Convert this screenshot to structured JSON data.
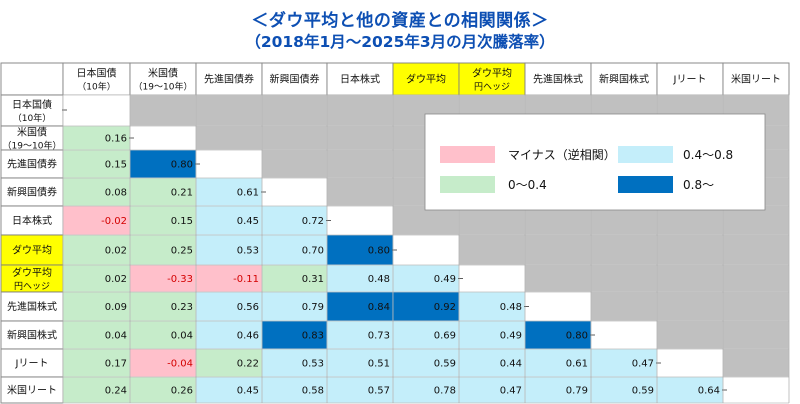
{
  "title": "＜ダウ平均と他の資産との相関関係＞",
  "subtitle": "（2018年1月〜2025年3月の月次騰落率）",
  "chart_data": {
    "type": "heatmap",
    "assets": [
      {
        "lines": [
          "日本国債",
          "（10年）"
        ],
        "highlight": false
      },
      {
        "lines": [
          "米国債",
          "（19〜10年）"
        ],
        "highlight": false
      },
      {
        "lines": [
          "先進国債券"
        ],
        "highlight": false
      },
      {
        "lines": [
          "新興国債券"
        ],
        "highlight": false
      },
      {
        "lines": [
          "日本株式"
        ],
        "highlight": false
      },
      {
        "lines": [
          "ダウ平均"
        ],
        "highlight": true
      },
      {
        "lines": [
          "ダウ平均",
          "円ヘッジ"
        ],
        "highlight": true
      },
      {
        "lines": [
          "先進国株式"
        ],
        "highlight": false
      },
      {
        "lines": [
          "新興国株式"
        ],
        "highlight": false
      },
      {
        "lines": [
          "Jリート"
        ],
        "highlight": false
      },
      {
        "lines": [
          "米国リート"
        ],
        "highlight": false
      }
    ],
    "row_labels": [
      {
        "lines": [
          "日本国債",
          "（10年）"
        ],
        "highlight": false
      },
      {
        "lines": [
          "米国債",
          "（19〜10年）"
        ],
        "highlight": false
      },
      {
        "lines": [
          "先進国債券"
        ],
        "highlight": false
      },
      {
        "lines": [
          "新興国債券"
        ],
        "highlight": false
      },
      {
        "lines": [
          "日本株式"
        ],
        "highlight": false
      },
      {
        "lines": [
          "ダウ平均"
        ],
        "highlight": true
      },
      {
        "lines": [
          "ダウ平均",
          "円ヘッジ"
        ],
        "highlight": true
      },
      {
        "lines": [
          "先進国株式"
        ],
        "highlight": false
      },
      {
        "lines": [
          "新興国株式"
        ],
        "highlight": false
      },
      {
        "lines": [
          "Jリート"
        ],
        "highlight": false
      },
      {
        "lines": [
          "米国リート"
        ],
        "highlight": false
      }
    ],
    "values": [
      [],
      [
        "0.16"
      ],
      [
        "0.15",
        "0.80"
      ],
      [
        "0.08",
        "0.21",
        "0.61"
      ],
      [
        "-0.02",
        "0.15",
        "0.45",
        "0.72"
      ],
      [
        "0.02",
        "0.25",
        "0.53",
        "0.70",
        "0.80"
      ],
      [
        "0.02",
        "-0.33",
        "-0.11",
        "0.31",
        "0.48",
        "0.49"
      ],
      [
        "0.09",
        "0.23",
        "0.56",
        "0.79",
        "0.84",
        "0.92",
        "0.48"
      ],
      [
        "0.04",
        "0.04",
        "0.46",
        "0.83",
        "0.73",
        "0.69",
        "0.49",
        "0.80"
      ],
      [
        "0.17",
        "-0.04",
        "0.22",
        "0.53",
        "0.51",
        "0.59",
        "0.44",
        "0.61",
        "0.47"
      ],
      [
        "0.24",
        "0.26",
        "0.45",
        "0.58",
        "0.57",
        "0.78",
        "0.47",
        "0.79",
        "0.59",
        "0.64"
      ]
    ],
    "legend": [
      {
        "label": "マイナス（逆相関）",
        "color": "#ffc0cb"
      },
      {
        "label": "0.4〜0.8",
        "color": "#c4eefa"
      },
      {
        "label": "0〜0.4",
        "color": "#c6ecca"
      },
      {
        "label": "0.8〜",
        "color": "#0070c0"
      }
    ],
    "colors": {
      "negative": "#ffc0cb",
      "low": "#c6ecca",
      "mid": "#c4eefa",
      "high": "#0070c0",
      "masked": "#c0c0c0",
      "highlight": "#ffff00",
      "title": "#0d4fb3"
    }
  }
}
